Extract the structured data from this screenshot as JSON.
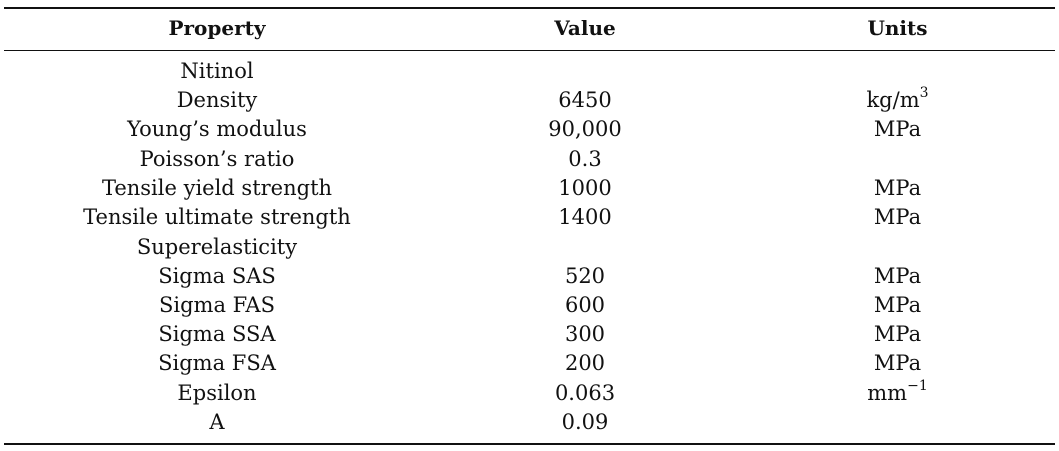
{
  "table": {
    "headers": {
      "property": "Property",
      "value": "Value",
      "units": "Units"
    },
    "rows": [
      {
        "property": "Nitinol",
        "value": "",
        "unit_base": "",
        "unit_sup": ""
      },
      {
        "property": "Density",
        "value": "6450",
        "unit_base": "kg/m",
        "unit_sup": "3"
      },
      {
        "property": "Young’s modulus",
        "value": "90,000",
        "unit_base": "MPa",
        "unit_sup": ""
      },
      {
        "property": "Poisson’s ratio",
        "value": "0.3",
        "unit_base": "",
        "unit_sup": ""
      },
      {
        "property": "Tensile yield strength",
        "value": "1000",
        "unit_base": "MPa",
        "unit_sup": ""
      },
      {
        "property": "Tensile ultimate strength",
        "value": "1400",
        "unit_base": "MPa",
        "unit_sup": ""
      },
      {
        "property": "Superelasticity",
        "value": "",
        "unit_base": "",
        "unit_sup": ""
      },
      {
        "property": "Sigma SAS",
        "value": "520",
        "unit_base": "MPa",
        "unit_sup": ""
      },
      {
        "property": "Sigma FAS",
        "value": "600",
        "unit_base": "MPa",
        "unit_sup": ""
      },
      {
        "property": "Sigma SSA",
        "value": "300",
        "unit_base": "MPa",
        "unit_sup": ""
      },
      {
        "property": "Sigma FSA",
        "value": "200",
        "unit_base": "MPa",
        "unit_sup": ""
      },
      {
        "property": "Epsilon",
        "value": "0.063",
        "unit_base": "mm",
        "unit_sup": "−1"
      },
      {
        "property": "A",
        "value": "0.09",
        "unit_base": "",
        "unit_sup": ""
      }
    ]
  }
}
